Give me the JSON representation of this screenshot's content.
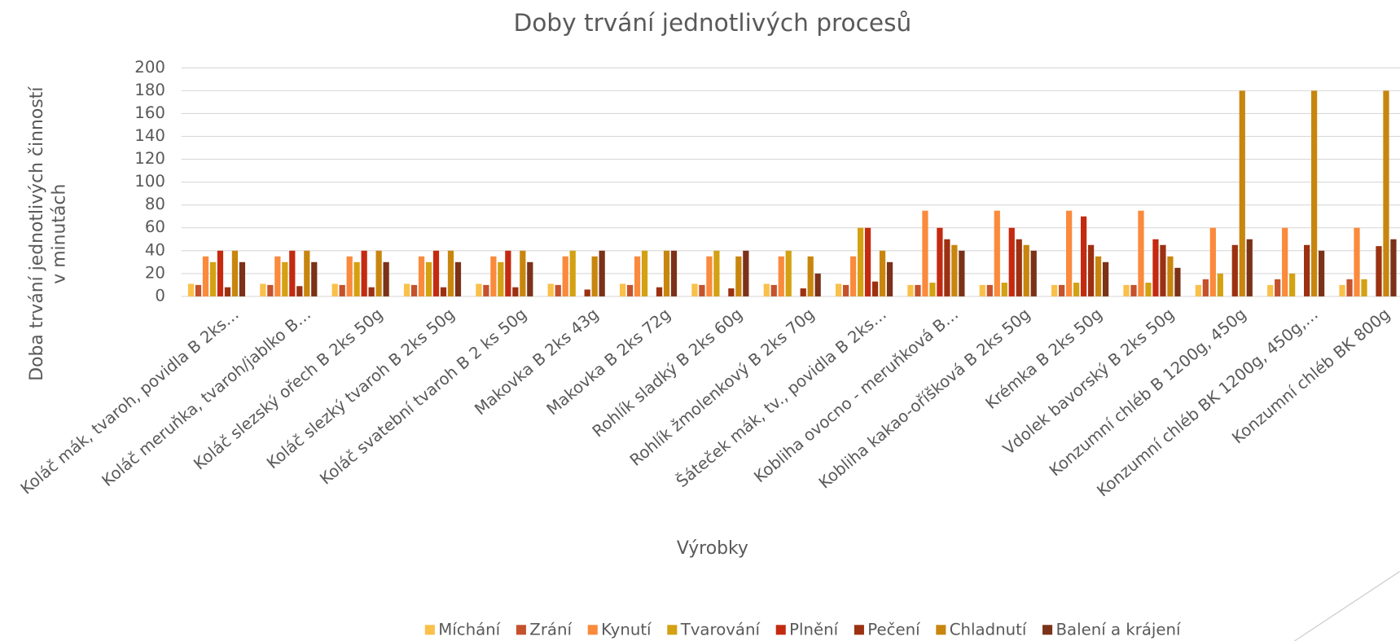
{
  "chart_data": {
    "type": "bar",
    "title": "Doby trvání jednotlivých procesů",
    "ylabel": [
      "Doba trvání jednotlivých činností",
      "v minutách"
    ],
    "xlabel": "Výrobky",
    "categories": [
      "Koláč mák, tvaroh, povidla B 2ks…",
      "Koláč meruňka, tvaroh/jablko B…",
      "Koláč slezský ořech B 2ks 50g",
      "Koláč slezký tvaroh B 2ks 50g",
      "Koláč svatební tvaroh B 2 ks 50g",
      "Makovka B 2ks 43g",
      "Makovka B 2ks 72g",
      "Rohlík sladký B 2ks 60g",
      "Rohlík žmolenkový B 2ks 70g",
      "Šáteček mák, tv., povidla B 2ks…",
      "Kobliha ovocno - meruňková B…",
      "Kobliha kakao-oříšková B 2ks 50g",
      "Krémka B 2ks 50g",
      "Vdolek bavorský B 2ks 50g",
      "Konzumní chléb B 1200g,  450g",
      "Konzumní chléb BK 1200g,  450g,…",
      "Konzumní chléb BK 800g"
    ],
    "series": [
      {
        "name": "Míchání",
        "color": "#f9c04a",
        "values": [
          11,
          11,
          11,
          11,
          11,
          11,
          11,
          11,
          11,
          11,
          10,
          10,
          10,
          10,
          10,
          10,
          10
        ]
      },
      {
        "name": "Zrání",
        "color": "#c4522c",
        "values": [
          10,
          10,
          10,
          10,
          10,
          10,
          10,
          10,
          10,
          10,
          10,
          10,
          10,
          10,
          15,
          15,
          15
        ]
      },
      {
        "name": "Kynutí",
        "color": "#fa8a3c",
        "values": [
          35,
          35,
          35,
          35,
          35,
          35,
          35,
          35,
          35,
          35,
          75,
          75,
          75,
          75,
          60,
          60,
          60
        ]
      },
      {
        "name": "Tvarování",
        "color": "#d4a112",
        "values": [
          30,
          30,
          30,
          30,
          30,
          40,
          40,
          40,
          40,
          60,
          12,
          12,
          12,
          12,
          20,
          20,
          15
        ]
      },
      {
        "name": "Plnění",
        "color": "#c42a10",
        "values": [
          40,
          40,
          40,
          40,
          40,
          0,
          0,
          0,
          0,
          60,
          60,
          60,
          70,
          50,
          0,
          0,
          0
        ]
      },
      {
        "name": "Pečení",
        "color": "#9c3112",
        "values": [
          8,
          9,
          8,
          8,
          8,
          6,
          8,
          7,
          7,
          13,
          50,
          50,
          45,
          45,
          45,
          45,
          44
        ]
      },
      {
        "name": "Chladnutí",
        "color": "#c8860e",
        "values": [
          40,
          40,
          40,
          40,
          40,
          35,
          40,
          35,
          35,
          40,
          45,
          45,
          35,
          35,
          180,
          180,
          180
        ]
      },
      {
        "name": "Balení a krájení",
        "color": "#7b3219",
        "values": [
          30,
          30,
          30,
          30,
          30,
          40,
          40,
          40,
          20,
          30,
          40,
          40,
          30,
          25,
          50,
          40,
          50
        ]
      }
    ],
    "ylim": [
      0,
      200
    ],
    "yticks": [
      0,
      20,
      40,
      60,
      80,
      100,
      120,
      140,
      160,
      180,
      200
    ],
    "grid": true,
    "legend": "bottom"
  }
}
